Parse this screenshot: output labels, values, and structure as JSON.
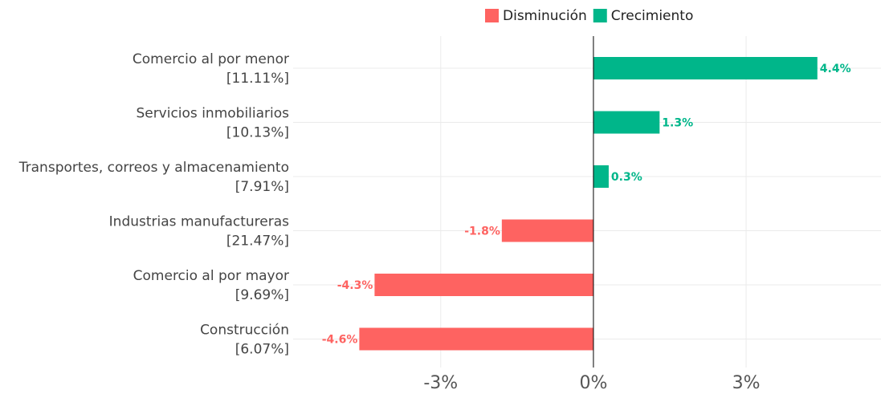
{
  "chart_data": {
    "type": "hbar",
    "categories": [
      "Comercio al por menor",
      "Servicios inmobiliarios",
      "Transportes, correos y almacenamiento",
      "Industrias manufactureras",
      "Comercio al por mayor",
      "Construcción"
    ],
    "category_shares": [
      "[11.11%]",
      "[10.13%]",
      "[7.91%]",
      "[21.47%]",
      "[9.69%]",
      "[6.07%]"
    ],
    "values": [
      4.4,
      1.3,
      0.3,
      -1.8,
      -4.3,
      -4.6
    ],
    "value_labels": [
      "4.4%",
      "1.3%",
      "0.3%",
      "-1.8%",
      "-4.3%",
      "-4.6%"
    ],
    "legend": [
      {
        "name": "Disminución",
        "color": "#fe6361"
      },
      {
        "name": "Crecimiento",
        "color": "#00b68a"
      }
    ],
    "xlim": [
      -5.9,
      5.65
    ],
    "xticks": [
      {
        "value": -3,
        "label": "-3%"
      },
      {
        "value": 0,
        "label": "0%"
      },
      {
        "value": 3,
        "label": "3%"
      }
    ],
    "grid": true
  }
}
